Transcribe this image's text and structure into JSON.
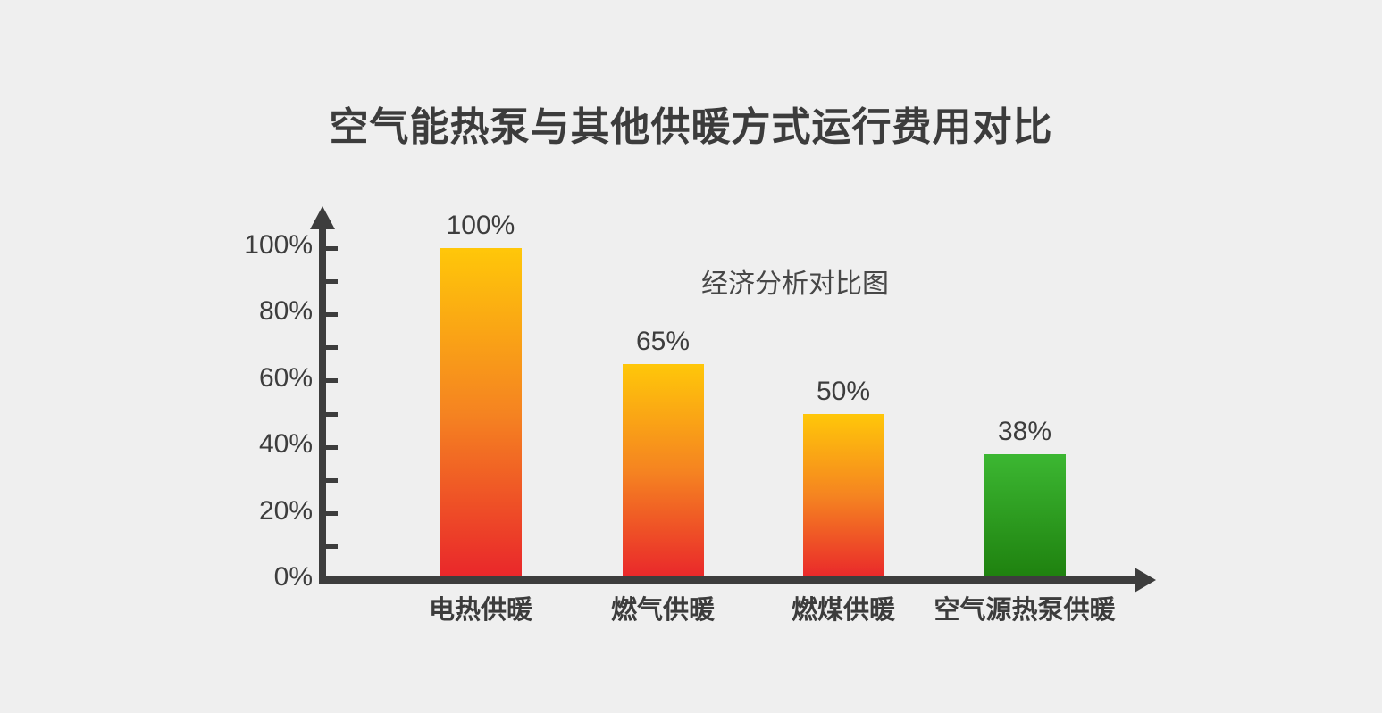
{
  "page": {
    "background_color": "#efefef",
    "axis_color": "#3d3d3d",
    "text_color": "#3d3d3d"
  },
  "chart_data": {
    "type": "bar",
    "title": "空气能热泵与其他供暖方式运行费用对比",
    "annotation": "经济分析对比图",
    "categories": [
      "电热供暖",
      "燃气供暖",
      "燃煤供暖",
      "空气源热泵供暖"
    ],
    "values": [
      100,
      65,
      50,
      38
    ],
    "value_labels": [
      "100%",
      "65%",
      "50%",
      "38%"
    ],
    "xlabel": "",
    "ylabel": "",
    "ylim": [
      0,
      100
    ],
    "y_tick_interval_minor": 10,
    "y_tick_interval_labeled": 20,
    "y_tick_labels": [
      "0%",
      "20%",
      "40%",
      "60%",
      "80%",
      "100%"
    ],
    "grid": false,
    "legend": false,
    "bar_gradients": [
      {
        "top": "#ffc709",
        "mid": "#f58321",
        "bottom": "#e9252b"
      },
      {
        "top": "#ffc709",
        "mid": "#f58321",
        "bottom": "#e9252b"
      },
      {
        "top": "#ffc709",
        "mid": "#f58321",
        "bottom": "#e9252b"
      },
      {
        "top": "#3cb732",
        "mid": "",
        "bottom": "#1e800e"
      }
    ]
  }
}
